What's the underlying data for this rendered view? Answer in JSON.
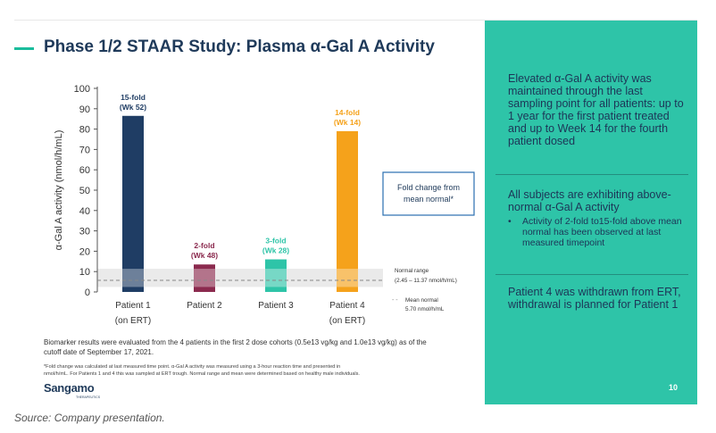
{
  "slide": {
    "title": "Phase 1/2 STAAR Study: Plasma α-Gal A Activity",
    "page_number": "10",
    "logo": "Sangamo",
    "logo_tagline": "THERAPEUTICS"
  },
  "panel": {
    "p1": "Elevated α-Gal A activity was maintained through the last sampling point for all patients: up to 1 year for the first patient treated and up to Week 14 for the fourth patient dosed",
    "p2": "All subjects are exhibiting above-normal α-Gal A activity",
    "bullet": "Activity of 2-fold to15-fold above mean normal has been observed at last measured timepoint",
    "p3": "Patient 4 was withdrawn from ERT, withdrawal is planned for Patient 1"
  },
  "footnotes": {
    "line1": "Biomarker results were evaluated from the 4 patients in the first 2 dose cohorts (0.5e13 vg/kg and 1.0e13 vg/kg) as of the",
    "line2": "cutoff date of September 17, 2021.",
    "small1": "*Fold change was calculated at last measured time point. α-Gal A activity was measured using a 3-hour reaction time and presented in",
    "small2": "nmol/h/mL. For Patients 1 and 4 this was sampled at ERT trough. Normal range and mean were determined based on healthy male individuals."
  },
  "source": "Source: Company presentation.",
  "chart_data": {
    "type": "bar",
    "ylabel": "α-Gal A activity (nmol/h/mL)",
    "ylim": [
      0,
      100
    ],
    "yticks": [
      0,
      10,
      20,
      30,
      40,
      50,
      60,
      70,
      80,
      90,
      100
    ],
    "categories": [
      "Patient 1",
      "Patient 2",
      "Patient 3",
      "Patient 4"
    ],
    "category_sublabels": [
      "(on ERT)",
      "",
      "",
      "(on ERT)"
    ],
    "values": [
      86.5,
      13.5,
      16,
      79
    ],
    "colors": [
      "#1f3d64",
      "#8b2a4e",
      "#2ec4a8",
      "#f5a21b"
    ],
    "bar_labels": [
      [
        "15-fold",
        "(Wk 52)"
      ],
      [
        "2-fold",
        "(Wk 48)"
      ],
      [
        "3-fold",
        "(Wk 28)"
      ],
      [
        "14-fold",
        "(Wk 14)"
      ]
    ],
    "normal_range": [
      2.45,
      11.37
    ],
    "mean_normal": 5.7,
    "legend_box": [
      "Fold change from",
      "mean normal*"
    ],
    "normal_range_label": [
      "Normal range",
      "(2.45 – 11.37 nmol/h/mL)"
    ],
    "mean_label": [
      "Mean normal",
      "5.70 nmol/h/mL"
    ],
    "mean_dash": "- -"
  }
}
